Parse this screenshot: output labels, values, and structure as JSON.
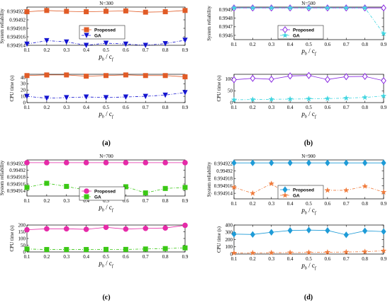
{
  "chart_data": [
    {
      "type": "line",
      "panel": "(a)",
      "title": "N=300",
      "subplots": [
        {
          "ylabel": "System reliability",
          "ylim": [
            0.994914,
            0.994923
          ],
          "yticks": [
            "0.994914",
            "0.994916",
            "0.994918",
            "0.99492",
            "0.994922"
          ],
          "ytick_values": [
            0.994914,
            0.994916,
            0.994918,
            0.99492,
            0.994922
          ],
          "legend": "center-right",
          "series": [
            {
              "name": "Proposed",
              "color": "#E15B26",
              "marker": "square",
              "dash": "",
              "values": [
                0.9949219,
                0.9949222,
                0.994922,
                0.9949219,
                0.994922,
                0.9949221,
                0.9949218,
                0.9949219,
                0.9949222
              ]
            },
            {
              "name": "GA",
              "color": "#1414D0",
              "marker": "triangle-down",
              "dash": "4 2 1 2",
              "values": [
                0.9949143,
                0.9949151,
                0.9949148,
                0.994914,
                0.9949145,
                0.9949143,
                0.994914,
                0.9949144,
                0.9949152
              ]
            }
          ]
        },
        {
          "ylabel": "CPU time (s)",
          "ylim": [
            0,
            45
          ],
          "yticks": [
            "0",
            "10",
            "20",
            "30",
            "40"
          ],
          "ytick_values": [
            0,
            10,
            20,
            30,
            40
          ],
          "series": [
            {
              "name": "Proposed",
              "color": "#E15B26",
              "marker": "square",
              "dash": "",
              "values": [
                43,
                44,
                44,
                42,
                43,
                44,
                43,
                43,
                41
              ]
            },
            {
              "name": "GA",
              "color": "#1414D0",
              "marker": "triangle-down",
              "dash": "4 2 1 2",
              "values": [
                10,
                7,
                8,
                9,
                8,
                9,
                10,
                12,
                16
              ]
            }
          ]
        }
      ]
    },
    {
      "type": "line",
      "panel": "(b)",
      "title": "N=500",
      "subplots": [
        {
          "ylabel": "System reliability",
          "ylim": [
            0.99455,
            0.99493
          ],
          "yticks": [
            "0.9946",
            "0.9947",
            "0.9948",
            "0.9949"
          ],
          "ytick_values": [
            0.9946,
            0.9947,
            0.9948,
            0.9949
          ],
          "legend": "center-right",
          "series": [
            {
              "name": "Proposed",
              "color": "#8A2BE2",
              "marker": "diamond-open",
              "dash": "",
              "values": [
                0.99492,
                0.99492,
                0.99492,
                0.99492,
                0.99492,
                0.99492,
                0.99492,
                0.99492,
                0.99492
              ]
            },
            {
              "name": "GA",
              "color": "#3FD5E0",
              "marker": "star",
              "dash": "4 2 1 2",
              "values": [
                0.99492,
                0.99492,
                0.99492,
                0.99492,
                0.99492,
                0.99492,
                0.99492,
                0.99492,
                0.99462
              ]
            }
          ]
        },
        {
          "ylabel": "CPU time (s)",
          "ylim": [
            0,
            120
          ],
          "yticks": [
            "0",
            "50",
            "100"
          ],
          "ytick_values": [
            0,
            50,
            100
          ],
          "series": [
            {
              "name": "Proposed",
              "color": "#8A2BE2",
              "marker": "diamond-open",
              "dash": "",
              "values": [
                97,
                103,
                99,
                113,
                115,
                98,
                110,
                111,
                93
              ]
            },
            {
              "name": "GA",
              "color": "#3FD5E0",
              "marker": "star",
              "dash": "4 2 1 2",
              "values": [
                12,
                13,
                14,
                15,
                16,
                17,
                19,
                22,
                28
              ]
            }
          ]
        }
      ]
    },
    {
      "type": "line",
      "panel": "(c)",
      "title": "N=700",
      "subplots": [
        {
          "ylabel": "System reliability",
          "ylim": [
            0.9949125,
            0.994923
          ],
          "yticks": [
            "0.994914",
            "0.994916",
            "0.994918",
            "0.99492",
            "0.994922"
          ],
          "ytick_values": [
            0.994914,
            0.994916,
            0.994918,
            0.99492,
            0.994922
          ],
          "legend": "center-right",
          "series": [
            {
              "name": "Proposed",
              "color": "#E62AA8",
              "marker": "circle",
              "dash": "",
              "values": [
                0.9949222,
                0.9949222,
                0.9949222,
                0.9949222,
                0.9949222,
                0.9949222,
                0.9949222,
                0.9949222,
                0.9949222
              ]
            },
            {
              "name": "GA",
              "color": "#3BC815",
              "marker": "square",
              "dash": "4 2 1 2",
              "values": [
                0.994915,
                0.9949162,
                0.9949153,
                0.9949142,
                0.9949132,
                0.9949152,
                0.9949134,
                0.9949147,
                0.994915
              ]
            }
          ]
        },
        {
          "ylabel": "CPU time (s)",
          "ylim": [
            0,
            200
          ],
          "yticks": [
            "0",
            "50",
            "100",
            "150",
            "200"
          ],
          "ytick_values": [
            0,
            50,
            100,
            150,
            200
          ],
          "series": [
            {
              "name": "Proposed",
              "color": "#E62AA8",
              "marker": "circle",
              "dash": "",
              "values": [
                165,
                172,
                172,
                168,
                183,
                170,
                175,
                178,
                198
              ]
            },
            {
              "name": "GA",
              "color": "#3BC815",
              "marker": "square",
              "dash": "4 2 1 2",
              "values": [
                22,
                18,
                18,
                18,
                19,
                19,
                22,
                25,
                30
              ]
            }
          ]
        }
      ]
    },
    {
      "type": "line",
      "panel": "(d)",
      "title": "N=900",
      "subplots": [
        {
          "ylabel": "System reliability",
          "ylim": [
            0.9949125,
            0.994923
          ],
          "yticks": [
            "0.994914",
            "0.994916",
            "0.994918",
            "0.99492",
            "0.994922"
          ],
          "ytick_values": [
            0.994914,
            0.994916,
            0.994918,
            0.99492,
            0.994922
          ],
          "legend": "center-right",
          "series": [
            {
              "name": "Proposed",
              "color": "#1E9BD7",
              "marker": "diamond",
              "dash": "",
              "values": [
                0.9949222,
                0.9949222,
                0.9949222,
                0.9949222,
                0.9949222,
                0.9949222,
                0.9949222,
                0.9949222,
                0.9949222
              ]
            },
            {
              "name": "GA",
              "color": "#F07A3A",
              "marker": "star",
              "dash": "4 2 1 2",
              "values": [
                0.9949156,
                0.994914,
                0.9949166,
                0.9949132,
                0.9949155,
                0.9949148,
                0.9949148,
                0.9949159,
                0.9949143
              ]
            }
          ]
        },
        {
          "ylabel": "CPU time (s)",
          "ylim": [
            0,
            400
          ],
          "yticks": [
            "0",
            "100",
            "200",
            "300",
            "400"
          ],
          "ytick_values": [
            0,
            100,
            200,
            300,
            400
          ],
          "series": [
            {
              "name": "Proposed",
              "color": "#1E9BD7",
              "marker": "diamond",
              "dash": "",
              "values": [
                275,
                270,
                300,
                325,
                330,
                325,
                265,
                320,
                310
              ]
            },
            {
              "name": "GA",
              "color": "#F07A3A",
              "marker": "star",
              "dash": "4 2 1 2",
              "values": [
                15,
                16,
                18,
                20,
                22,
                25,
                28,
                33,
                45
              ]
            }
          ]
        }
      ]
    }
  ],
  "shared": {
    "x": [
      0.1,
      0.2,
      0.3,
      0.4,
      0.5,
      0.6,
      0.7,
      0.8,
      0.9
    ],
    "xticks": [
      "0.1",
      "0.2",
      "0.3",
      "0.4",
      "0.5",
      "0.6",
      "0.7",
      "0.8",
      "0.9"
    ],
    "xlim": [
      0.1,
      0.9
    ],
    "xlabel_main": "p",
    "xlabel_sub1": "b",
    "xlabel_sep": " / c",
    "xlabel_sub2": "f",
    "grid": false
  }
}
